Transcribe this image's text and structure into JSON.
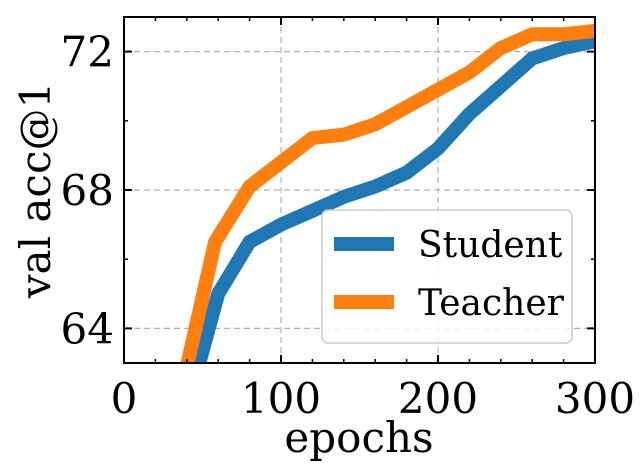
{
  "chart_data": {
    "type": "line",
    "xlabel": "epochs",
    "ylabel": "val acc@1",
    "xlim": [
      0,
      300
    ],
    "ylim": [
      63.0,
      73.0
    ],
    "xticks": [
      0,
      100,
      200,
      300
    ],
    "xtick_labels": [
      "0",
      "100",
      "200",
      "300"
    ],
    "yticks": [
      64,
      68,
      72
    ],
    "ytick_labels": [
      "64",
      "68",
      "72"
    ],
    "grid": true,
    "legend_position": "lower-right",
    "series": [
      {
        "name": "Student",
        "color": "#1f77b4",
        "x": [
          45,
          60,
          80,
          100,
          120,
          140,
          160,
          180,
          200,
          220,
          240,
          260,
          280,
          300
        ],
        "y": [
          62.5,
          65.0,
          66.5,
          67.0,
          67.4,
          67.8,
          68.1,
          68.5,
          69.2,
          70.2,
          71.0,
          71.8,
          72.1,
          72.3
        ]
      },
      {
        "name": "Teacher",
        "color": "#ff7f0e",
        "x": [
          38,
          58,
          80,
          100,
          120,
          140,
          160,
          180,
          200,
          220,
          240,
          260,
          280,
          300
        ],
        "y": [
          62.5,
          66.5,
          68.1,
          68.8,
          69.5,
          69.6,
          69.9,
          70.4,
          70.9,
          71.4,
          72.1,
          72.5,
          72.5,
          72.6
        ]
      }
    ]
  }
}
